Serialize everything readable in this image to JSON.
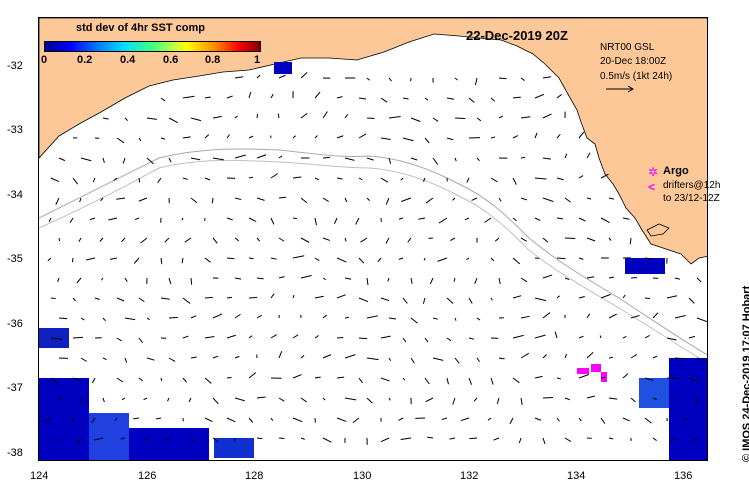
{
  "map": {
    "title": "22-Dec-2019 20Z",
    "colorbar": {
      "title": "std dev of 4hr SST comp",
      "ticks": [
        "0",
        "0.2",
        "0.4",
        "0.6",
        "0.8",
        "1"
      ],
      "range": [
        0,
        1
      ]
    },
    "y_ticks": [
      "-32",
      "-33",
      "-34",
      "-35",
      "-36",
      "-37",
      "-38"
    ],
    "x_ticks": [
      "124",
      "126",
      "128",
      "130",
      "132",
      "134",
      "136"
    ],
    "lon_range": [
      124,
      136.5
    ],
    "lat_range": [
      -31.4,
      -38.1
    ],
    "legend": {
      "line1": "NRT00 GSL",
      "line2": "20-Dec 18:00Z",
      "line3": "0.5m/s (1kt 24h)",
      "argo_label": "Argo",
      "drifters_line1": "drifters@12h",
      "drifters_line2": "to 23/12-12Z"
    },
    "credit": "© IMOS 24-Dec-2019 17:07 Hobart",
    "colors": {
      "land": "#fdc898",
      "ocean": "#ffffff",
      "vectors": "#000000",
      "bathymetry": "#a8a8a8",
      "argo": "#ff00ff",
      "sst_low": "#0000c0",
      "sst_high": "#ff0000"
    }
  }
}
